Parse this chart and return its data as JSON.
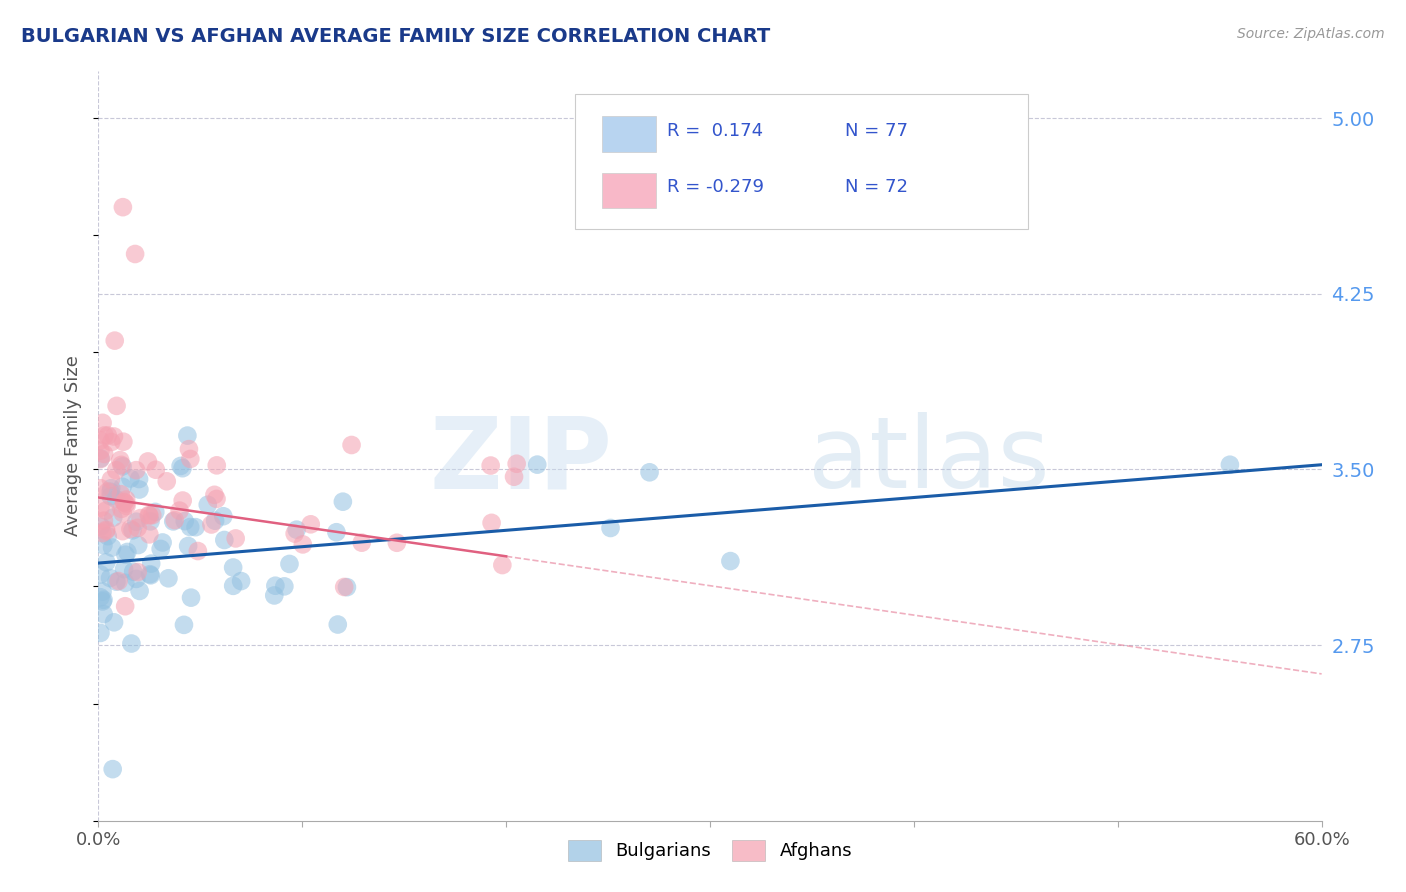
{
  "title": "BULGARIAN VS AFGHAN AVERAGE FAMILY SIZE CORRELATION CHART",
  "source_text": "Source: ZipAtlas.com",
  "ylabel": "Average Family Size",
  "watermark_zip": "ZIP",
  "watermark_atlas": "atlas",
  "xlim": [
    0.0,
    0.6
  ],
  "ylim": [
    2.0,
    5.2
  ],
  "yticks": [
    2.75,
    3.5,
    4.25,
    5.0
  ],
  "xticks": [
    0.0,
    0.6
  ],
  "xtick_labels": [
    "0.0%",
    "60.0%"
  ],
  "bulgarian_color": "#92c0e0",
  "afghan_color": "#f4a0b0",
  "trend_bulgarian_color": "#1a5ca8",
  "trend_afghan_color": "#e06080",
  "grid_color": "#c8c8d8",
  "background_color": "#ffffff",
  "title_color": "#1a3a8a",
  "right_label_color": "#5599ee",
  "legend_text_color": "#3355cc",
  "legend_r_color": "#3355cc",
  "bul_legend_box_color": "#b8d4f0",
  "afg_legend_box_color": "#f8b8c8",
  "seed": 99
}
